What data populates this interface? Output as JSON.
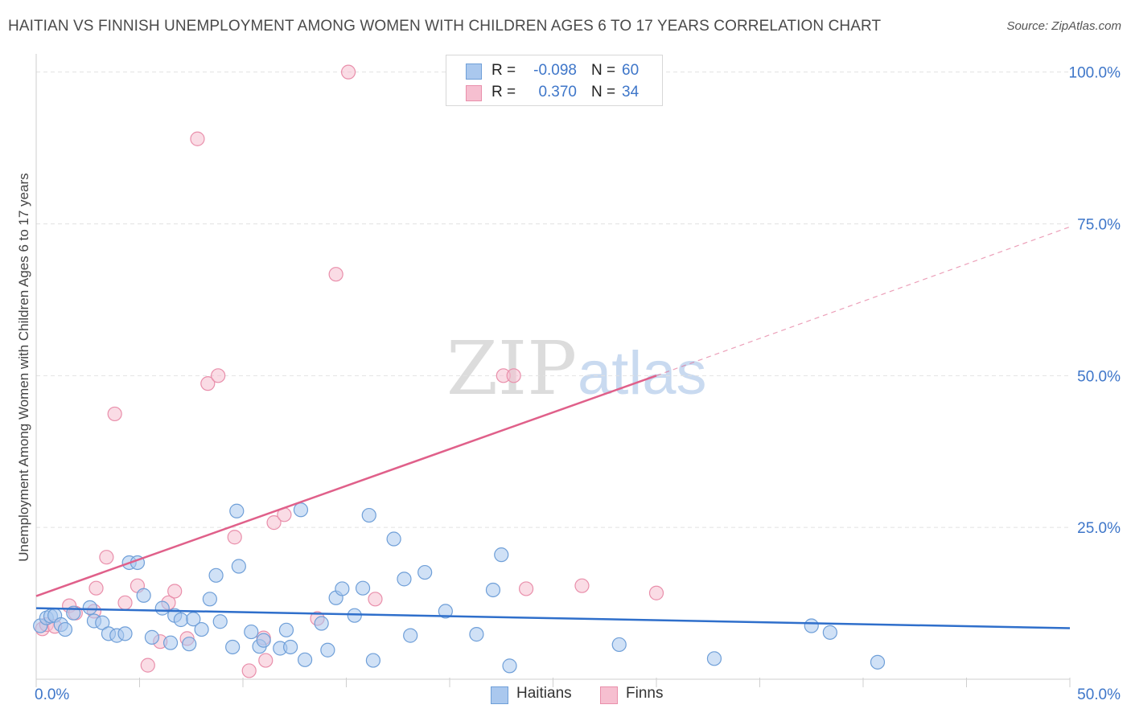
{
  "title": "HAITIAN VS FINNISH UNEMPLOYMENT AMONG WOMEN WITH CHILDREN AGES 6 TO 17 YEARS CORRELATION CHART",
  "source": "Source: ZipAtlas.com",
  "watermark": {
    "zip": "ZIP",
    "atlas": "atlas"
  },
  "legend_top": {
    "rows": [
      {
        "r_label": "R =",
        "r_value": "-0.098",
        "n_label": "N =",
        "n_value": "60"
      },
      {
        "r_label": "R =",
        "r_value": "0.370",
        "n_label": "N =",
        "n_value": "34"
      }
    ]
  },
  "legend_bottom": {
    "haitians": "Haitians",
    "finns": "Finns"
  },
  "colors": {
    "haitians_fill": "#aac8ee",
    "haitians_stroke": "#6f9fd8",
    "haitians_line": "#2f6fcb",
    "finns_fill": "#f6bfd0",
    "finns_stroke": "#e98fab",
    "finns_line": "#e0608a",
    "axis_text": "#3e76c9",
    "grid": "#e2e2e2"
  },
  "chart_data": {
    "type": "scatter",
    "title": "HAITIAN VS FINNISH UNEMPLOYMENT AMONG WOMEN WITH CHILDREN AGES 6 TO 17 YEARS CORRELATION CHART",
    "xlabel": "",
    "ylabel": "Unemployment Among Women with Children Ages 6 to 17 years",
    "xlim": [
      0,
      50
    ],
    "ylim": [
      0,
      103
    ],
    "x_tick_labels": [
      {
        "value": 0,
        "label": "0.0%"
      },
      {
        "value": 50,
        "label": "50.0%"
      }
    ],
    "y_tick_labels": [
      {
        "value": 25,
        "label": "25.0%"
      },
      {
        "value": 50,
        "label": "50.0%"
      },
      {
        "value": 75,
        "label": "75.0%"
      },
      {
        "value": 100,
        "label": "100.0%"
      }
    ],
    "x_minor_ticks": [
      0,
      5,
      10,
      15,
      20,
      25,
      30,
      35,
      40,
      45,
      50
    ],
    "y_gridlines": [
      25,
      50,
      75,
      100
    ],
    "series": [
      {
        "name": "Haitians",
        "r": -0.098,
        "n": 60,
        "trend": {
          "x": [
            0,
            50
          ],
          "y": [
            11.7,
            8.4
          ],
          "style": "solid"
        },
        "points": [
          [
            0.2,
            8.8
          ],
          [
            0.5,
            10.1
          ],
          [
            0.7,
            10.4
          ],
          [
            0.9,
            10.5
          ],
          [
            1.2,
            9.0
          ],
          [
            1.4,
            8.2
          ],
          [
            1.8,
            10.9
          ],
          [
            2.6,
            11.8
          ],
          [
            2.8,
            9.6
          ],
          [
            3.2,
            9.3
          ],
          [
            3.5,
            7.5
          ],
          [
            3.9,
            7.2
          ],
          [
            4.3,
            7.5
          ],
          [
            4.5,
            19.2
          ],
          [
            4.9,
            19.2
          ],
          [
            5.2,
            13.8
          ],
          [
            5.6,
            6.9
          ],
          [
            6.1,
            11.7
          ],
          [
            6.5,
            6.0
          ],
          [
            6.7,
            10.5
          ],
          [
            7.0,
            9.8
          ],
          [
            7.4,
            5.8
          ],
          [
            7.6,
            9.9
          ],
          [
            8.0,
            8.2
          ],
          [
            8.4,
            13.2
          ],
          [
            8.7,
            17.1
          ],
          [
            8.9,
            9.5
          ],
          [
            9.5,
            5.3
          ],
          [
            9.7,
            27.7
          ],
          [
            9.8,
            18.6
          ],
          [
            10.4,
            7.8
          ],
          [
            10.8,
            5.4
          ],
          [
            11.0,
            6.4
          ],
          [
            11.8,
            5.1
          ],
          [
            12.1,
            8.1
          ],
          [
            12.3,
            5.3
          ],
          [
            12.8,
            27.9
          ],
          [
            13.0,
            3.2
          ],
          [
            13.8,
            9.2
          ],
          [
            14.1,
            4.8
          ],
          [
            14.5,
            13.4
          ],
          [
            14.8,
            14.9
          ],
          [
            15.4,
            10.5
          ],
          [
            15.8,
            15.0
          ],
          [
            16.1,
            27.0
          ],
          [
            16.3,
            3.1
          ],
          [
            17.3,
            23.1
          ],
          [
            17.8,
            16.5
          ],
          [
            18.1,
            7.2
          ],
          [
            18.8,
            17.6
          ],
          [
            19.8,
            11.2
          ],
          [
            21.3,
            7.4
          ],
          [
            22.1,
            14.7
          ],
          [
            22.5,
            20.5
          ],
          [
            22.9,
            2.2
          ],
          [
            28.2,
            5.7
          ],
          [
            32.8,
            3.4
          ],
          [
            37.5,
            8.8
          ],
          [
            38.4,
            7.7
          ],
          [
            40.7,
            2.8
          ]
        ]
      },
      {
        "name": "Finns",
        "r": 0.37,
        "n": 34,
        "trend": {
          "x": [
            0,
            30
          ],
          "y": [
            13.7,
            50.0
          ],
          "style": "solid",
          "extension": {
            "x": [
              30,
              50
            ],
            "y": [
              50.0,
              74.5
            ],
            "style": "dashed"
          }
        },
        "points": [
          [
            0.3,
            8.3
          ],
          [
            0.5,
            9.0
          ],
          [
            0.9,
            8.7
          ],
          [
            1.6,
            12.1
          ],
          [
            1.9,
            10.9
          ],
          [
            2.8,
            11.2
          ],
          [
            2.9,
            15.0
          ],
          [
            3.4,
            20.1
          ],
          [
            3.8,
            43.7
          ],
          [
            4.3,
            12.6
          ],
          [
            4.9,
            15.4
          ],
          [
            5.4,
            2.3
          ],
          [
            6.0,
            6.2
          ],
          [
            6.4,
            12.6
          ],
          [
            6.7,
            14.5
          ],
          [
            7.3,
            6.7
          ],
          [
            7.8,
            89.0
          ],
          [
            8.3,
            48.7
          ],
          [
            8.8,
            50.0
          ],
          [
            9.6,
            23.4
          ],
          [
            10.3,
            1.4
          ],
          [
            11.0,
            6.8
          ],
          [
            11.1,
            3.1
          ],
          [
            11.5,
            25.8
          ],
          [
            12.0,
            27.1
          ],
          [
            13.6,
            10.0
          ],
          [
            14.5,
            66.7
          ],
          [
            15.1,
            100.0
          ],
          [
            16.4,
            13.2
          ],
          [
            22.6,
            50.0
          ],
          [
            23.1,
            50.0
          ],
          [
            23.7,
            14.9
          ],
          [
            26.4,
            15.4
          ],
          [
            30.0,
            14.2
          ]
        ]
      }
    ]
  }
}
